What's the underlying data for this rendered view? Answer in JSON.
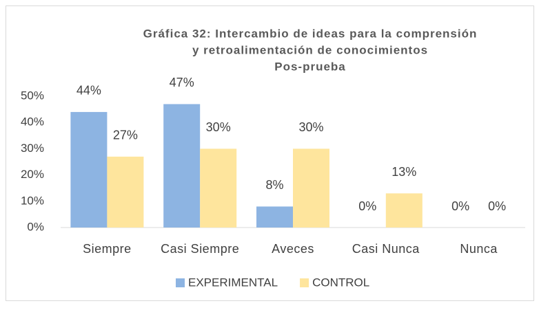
{
  "chart_data": {
    "type": "bar",
    "title": [
      "Gráfica 32: Intercambio de ideas para la comprensión",
      "y retroalimentación de conocimientos",
      "Pos-prueba"
    ],
    "categories": [
      "Siempre",
      "Casi Siempre",
      "Aveces",
      "Casi Nunca",
      "Nunca"
    ],
    "series": [
      {
        "name": "EXPERIMENTAL",
        "color": "#8db4e2",
        "values": [
          44,
          47,
          8,
          0,
          0
        ],
        "value_labels": [
          "44%",
          "47%",
          "8%",
          "0%",
          "0%"
        ]
      },
      {
        "name": "CONTROL",
        "color": "#fee59d",
        "values": [
          27,
          30,
          30,
          13,
          0
        ],
        "value_labels": [
          "27%",
          "30%",
          "30%",
          "13%",
          "0%"
        ]
      }
    ],
    "ylim": [
      0,
      50
    ],
    "yticks": [
      {
        "value": 0,
        "label": "0%"
      },
      {
        "value": 10,
        "label": "10%"
      },
      {
        "value": 20,
        "label": "20%"
      },
      {
        "value": 30,
        "label": "30%"
      },
      {
        "value": 40,
        "label": "40%"
      },
      {
        "value": 50,
        "label": "50%"
      }
    ],
    "grid": false,
    "legend": "bottom"
  }
}
